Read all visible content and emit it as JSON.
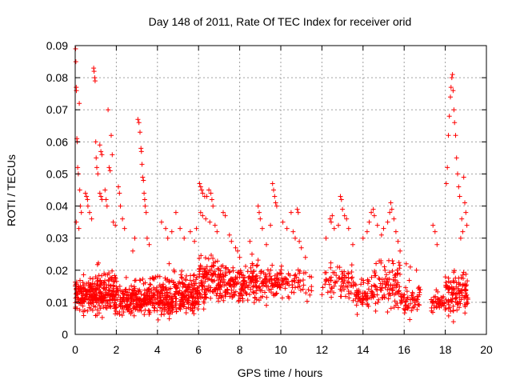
{
  "chart_data": {
    "type": "scatter",
    "title": "Day 148 of 2011, Rate Of TEC Index for receiver orid",
    "xlabel": "GPS time / hours",
    "ylabel": "ROTI / TECUs",
    "xlim": [
      0,
      20
    ],
    "ylim": [
      0,
      0.09
    ],
    "xticks": [
      0,
      2,
      4,
      6,
      8,
      10,
      12,
      14,
      16,
      18,
      20
    ],
    "yticks": [
      0,
      0.01,
      0.02,
      0.03,
      0.04,
      0.05,
      0.06,
      0.07,
      0.08,
      0.09
    ],
    "xtick_labels": [
      "0",
      "2",
      "4",
      "6",
      "8",
      "10",
      "12",
      "14",
      "16",
      "18",
      "20"
    ],
    "ytick_labels": [
      "0",
      "0.01",
      "0.02",
      "0.03",
      "0.04",
      "0.05",
      "0.06",
      "0.07",
      "0.08",
      "0.09"
    ],
    "grid": true,
    "marker": "+",
    "color": "#ff0000",
    "series": [
      {
        "values": [
          [
            0.02,
            0.089
          ],
          [
            0.03,
            0.085
          ],
          [
            0.05,
            0.077
          ],
          [
            0.06,
            0.076
          ],
          [
            0.08,
            0.061
          ],
          [
            0.1,
            0.06
          ],
          [
            0.12,
            0.052
          ],
          [
            0.15,
            0.05
          ],
          [
            0.2,
            0.072
          ],
          [
            0.22,
            0.045
          ],
          [
            0.25,
            0.04
          ],
          [
            0.3,
            0.038
          ],
          [
            0.05,
            0.035
          ],
          [
            0.18,
            0.033
          ],
          [
            0.5,
            0.044
          ],
          [
            0.55,
            0.043
          ],
          [
            0.6,
            0.042
          ],
          [
            0.62,
            0.04
          ],
          [
            0.7,
            0.038
          ],
          [
            0.8,
            0.036
          ],
          [
            0.9,
            0.083
          ],
          [
            0.92,
            0.082
          ],
          [
            0.95,
            0.08
          ],
          [
            0.97,
            0.079
          ],
          [
            1.0,
            0.06
          ],
          [
            1.02,
            0.055
          ],
          [
            1.05,
            0.052
          ],
          [
            1.1,
            0.05
          ],
          [
            1.2,
            0.059
          ],
          [
            1.25,
            0.057
          ],
          [
            1.3,
            0.056
          ],
          [
            1.6,
            0.07
          ],
          [
            1.65,
            0.052
          ],
          [
            1.7,
            0.051
          ],
          [
            1.75,
            0.062
          ],
          [
            1.8,
            0.056
          ],
          [
            1.45,
            0.045
          ],
          [
            1.5,
            0.042
          ],
          [
            1.55,
            0.04
          ],
          [
            1.2,
            0.044
          ],
          [
            1.25,
            0.043
          ],
          [
            1.3,
            0.042
          ],
          [
            1.85,
            0.035
          ],
          [
            1.95,
            0.034
          ],
          [
            2.1,
            0.046
          ],
          [
            2.15,
            0.044
          ],
          [
            2.2,
            0.04
          ],
          [
            2.3,
            0.036
          ],
          [
            2.4,
            0.033
          ],
          [
            3.05,
            0.067
          ],
          [
            3.1,
            0.066
          ],
          [
            3.15,
            0.063
          ],
          [
            3.2,
            0.058
          ],
          [
            3.22,
            0.057
          ],
          [
            3.25,
            0.053
          ],
          [
            3.28,
            0.049
          ],
          [
            3.32,
            0.048
          ],
          [
            3.35,
            0.044
          ],
          [
            3.38,
            0.042
          ],
          [
            3.4,
            0.04
          ],
          [
            3.45,
            0.038
          ],
          [
            3.5,
            0.03
          ],
          [
            3.6,
            0.028
          ],
          [
            2.9,
            0.03
          ],
          [
            2.8,
            0.026
          ],
          [
            4.2,
            0.035
          ],
          [
            4.4,
            0.033
          ],
          [
            4.5,
            0.03
          ],
          [
            4.7,
            0.032
          ],
          [
            4.9,
            0.038
          ],
          [
            5.1,
            0.033
          ],
          [
            5.3,
            0.03
          ],
          [
            5.6,
            0.032
          ],
          [
            5.8,
            0.029
          ],
          [
            5.9,
            0.033
          ],
          [
            6.05,
            0.047
          ],
          [
            6.1,
            0.046
          ],
          [
            6.15,
            0.045
          ],
          [
            6.2,
            0.044
          ],
          [
            6.3,
            0.043
          ],
          [
            6.4,
            0.043
          ],
          [
            6.5,
            0.045
          ],
          [
            6.6,
            0.044
          ],
          [
            6.65,
            0.042
          ],
          [
            6.7,
            0.04
          ],
          [
            6.1,
            0.038
          ],
          [
            6.2,
            0.037
          ],
          [
            6.35,
            0.036
          ],
          [
            6.55,
            0.035
          ],
          [
            6.8,
            0.034
          ],
          [
            6.9,
            0.032
          ],
          [
            7.2,
            0.038
          ],
          [
            7.3,
            0.037
          ],
          [
            7.5,
            0.031
          ],
          [
            7.6,
            0.029
          ],
          [
            7.8,
            0.027
          ],
          [
            7.9,
            0.026
          ],
          [
            8.0,
            0.024
          ],
          [
            8.5,
            0.029
          ],
          [
            8.6,
            0.025
          ],
          [
            8.9,
            0.04
          ],
          [
            8.95,
            0.038
          ],
          [
            9.0,
            0.036
          ],
          [
            9.1,
            0.033
          ],
          [
            9.3,
            0.028
          ],
          [
            9.5,
            0.034
          ],
          [
            9.6,
            0.047
          ],
          [
            9.65,
            0.045
          ],
          [
            9.7,
            0.043
          ],
          [
            9.75,
            0.041
          ],
          [
            9.8,
            0.04
          ],
          [
            10.1,
            0.035
          ],
          [
            10.3,
            0.033
          ],
          [
            10.5,
            0.038
          ],
          [
            10.6,
            0.032
          ],
          [
            10.7,
            0.03
          ],
          [
            10.8,
            0.039
          ],
          [
            10.85,
            0.038
          ],
          [
            10.9,
            0.029
          ],
          [
            11.0,
            0.027
          ],
          [
            11.2,
            0.024
          ],
          [
            12.2,
            0.03
          ],
          [
            12.4,
            0.036
          ],
          [
            12.45,
            0.035
          ],
          [
            12.5,
            0.037
          ],
          [
            12.6,
            0.033
          ],
          [
            12.8,
            0.034
          ],
          [
            12.9,
            0.043
          ],
          [
            12.95,
            0.042
          ],
          [
            13.0,
            0.039
          ],
          [
            13.1,
            0.037
          ],
          [
            13.2,
            0.036
          ],
          [
            13.3,
            0.033
          ],
          [
            13.5,
            0.028
          ],
          [
            14.0,
            0.03
          ],
          [
            14.2,
            0.032
          ],
          [
            14.3,
            0.035
          ],
          [
            14.4,
            0.038
          ],
          [
            14.5,
            0.039
          ],
          [
            14.55,
            0.037
          ],
          [
            14.7,
            0.034
          ],
          [
            14.9,
            0.031
          ],
          [
            15.0,
            0.033
          ],
          [
            15.2,
            0.035
          ],
          [
            15.3,
            0.038
          ],
          [
            15.35,
            0.041
          ],
          [
            15.4,
            0.039
          ],
          [
            15.5,
            0.036
          ],
          [
            15.6,
            0.032
          ],
          [
            15.7,
            0.029
          ],
          [
            15.8,
            0.026
          ],
          [
            16.1,
            0.022
          ],
          [
            16.3,
            0.021
          ],
          [
            16.6,
            0.02
          ],
          [
            17.4,
            0.034
          ],
          [
            17.5,
            0.032
          ],
          [
            17.6,
            0.028
          ],
          [
            18.05,
            0.047
          ],
          [
            18.1,
            0.052
          ],
          [
            18.15,
            0.062
          ],
          [
            18.2,
            0.068
          ],
          [
            18.25,
            0.074
          ],
          [
            18.28,
            0.077
          ],
          [
            18.32,
            0.08
          ],
          [
            18.35,
            0.081
          ],
          [
            18.38,
            0.076
          ],
          [
            18.42,
            0.07
          ],
          [
            18.45,
            0.066
          ],
          [
            18.5,
            0.062
          ],
          [
            18.55,
            0.055
          ],
          [
            18.6,
            0.05
          ],
          [
            18.65,
            0.046
          ],
          [
            18.7,
            0.043
          ],
          [
            18.9,
            0.049
          ],
          [
            18.95,
            0.041
          ],
          [
            19.0,
            0.038
          ],
          [
            19.05,
            0.034
          ],
          [
            18.8,
            0.036
          ],
          [
            18.75,
            0.03
          ],
          [
            18.85,
            0.032
          ]
        ],
        "bands": [
          [
            0.0,
            1.0,
            0.004,
            0.022,
            0.012,
            150
          ],
          [
            1.0,
            2.0,
            0.004,
            0.025,
            0.013,
            150
          ],
          [
            2.0,
            3.0,
            0.004,
            0.021,
            0.011,
            120
          ],
          [
            3.0,
            4.0,
            0.004,
            0.023,
            0.011,
            120
          ],
          [
            4.0,
            5.0,
            0.004,
            0.025,
            0.011,
            140
          ],
          [
            5.0,
            6.0,
            0.005,
            0.024,
            0.012,
            140
          ],
          [
            6.0,
            7.5,
            0.006,
            0.03,
            0.016,
            170
          ],
          [
            7.5,
            9.0,
            0.007,
            0.027,
            0.015,
            140
          ],
          [
            9.0,
            10.0,
            0.008,
            0.026,
            0.016,
            80
          ],
          [
            10.0,
            11.5,
            0.01,
            0.025,
            0.016,
            60
          ],
          [
            12.0,
            13.5,
            0.008,
            0.026,
            0.016,
            70
          ],
          [
            13.5,
            14.2,
            0.006,
            0.022,
            0.012,
            50
          ],
          [
            14.2,
            15.8,
            0.005,
            0.03,
            0.015,
            120
          ],
          [
            15.8,
            16.8,
            0.003,
            0.02,
            0.01,
            60
          ],
          [
            17.3,
            18.0,
            0.005,
            0.016,
            0.01,
            40
          ],
          [
            18.0,
            19.1,
            0.003,
            0.025,
            0.012,
            110
          ]
        ]
      }
    ]
  }
}
